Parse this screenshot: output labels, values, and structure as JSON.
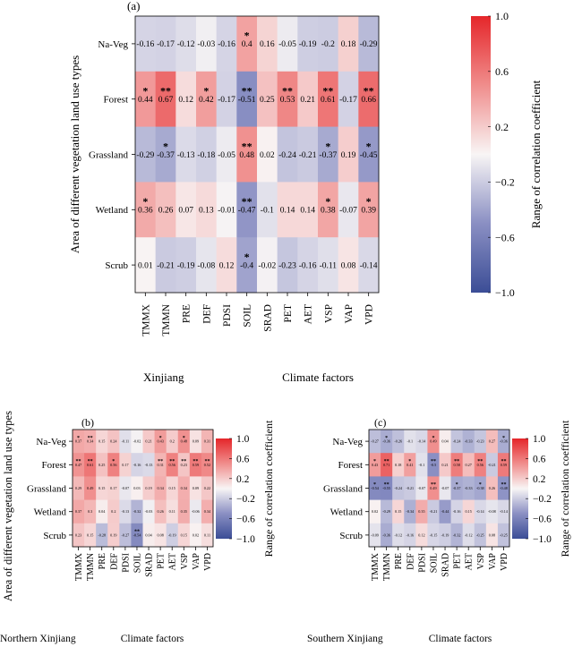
{
  "chart_data": [
    {
      "type": "heatmap",
      "panel_label": "(a)",
      "region": "Xinjiang",
      "xlabel": "Climate factors",
      "ylabel": "Area of different vegetation land use types",
      "colorbar_label": "Range of correlation coefficient",
      "colorbar_ticks": [
        "1.0",
        "0.6",
        "0.2",
        "−0.2",
        "−0.6",
        "−1.0"
      ],
      "vlim": [
        -1,
        1
      ],
      "x_categories": [
        "TMMX",
        "TMMN",
        "PRE",
        "DEF",
        "PDSI",
        "SOIL",
        "SRAD",
        "PET",
        "AET",
        "VSP",
        "VAP",
        "VPD"
      ],
      "y_categories": [
        "Na-Veg",
        "Forest",
        "Grassland",
        "Wetland",
        "Scrub"
      ],
      "values": [
        [
          -0.16,
          -0.17,
          -0.12,
          -0.03,
          -0.16,
          0.4,
          0.16,
          -0.05,
          -0.19,
          -0.2,
          0.18,
          -0.29
        ],
        [
          0.44,
          0.67,
          0.12,
          0.42,
          -0.17,
          -0.51,
          0.25,
          0.53,
          0.21,
          0.61,
          -0.17,
          0.66
        ],
        [
          -0.29,
          -0.37,
          -0.13,
          -0.18,
          -0.05,
          0.48,
          0.02,
          -0.24,
          -0.21,
          -0.37,
          0.19,
          -0.45
        ],
        [
          0.36,
          0.26,
          0.07,
          0.13,
          -0.01,
          -0.47,
          -0.1,
          0.14,
          0.14,
          0.38,
          -0.07,
          0.39
        ],
        [
          0.01,
          -0.21,
          -0.19,
          -0.08,
          0.12,
          -0.4,
          -0.02,
          -0.23,
          -0.16,
          -0.11,
          0.08,
          -0.14
        ]
      ],
      "significance": [
        [
          "",
          "",
          "",
          "",
          "",
          "*",
          "",
          "",
          "",
          "",
          "",
          ""
        ],
        [
          "*",
          "**",
          "",
          "*",
          "",
          "**",
          "",
          "**",
          "",
          "**",
          "",
          "**"
        ],
        [
          "",
          "*",
          "",
          "",
          "",
          "**",
          "",
          "",
          "",
          "*",
          "",
          "*"
        ],
        [
          "*",
          "",
          "",
          "",
          "",
          "**",
          "",
          "",
          "",
          "*",
          "",
          "*"
        ],
        [
          "",
          "",
          "",
          "",
          "",
          "*",
          "",
          "",
          "",
          "",
          "",
          ""
        ]
      ]
    },
    {
      "type": "heatmap",
      "panel_label": "(b)",
      "region": "Northern Xinjiang",
      "xlabel": "Climate factors",
      "ylabel": "Area of different vegetation land use types",
      "colorbar_label": "Range of correlation coefficient",
      "colorbar_ticks": [
        "1.0",
        "0.6",
        "0.2",
        "−0.2",
        "−0.6",
        "−1.0"
      ],
      "vlim": [
        -1,
        1
      ],
      "x_categories": [
        "TMMX",
        "TMMN",
        "PRE",
        "DEF",
        "PDSI",
        "SOIL",
        "SRAD",
        "PET",
        "AET",
        "VSP",
        "VAP",
        "VPD"
      ],
      "y_categories": [
        "Na-Veg",
        "Forest",
        "Grassland",
        "Wetland",
        "Scrub"
      ],
      "values": [
        [
          0.37,
          0.34,
          0.15,
          0.24,
          -0.11,
          -0.02,
          0.21,
          0.43,
          0.2,
          0.48,
          0.09,
          0.31
        ],
        [
          0.47,
          0.61,
          0.25,
          0.56,
          0.17,
          -0.16,
          -0.13,
          0.31,
          0.56,
          0.23,
          0.59,
          0.52
        ],
        [
          0.29,
          0.49,
          0.15,
          0.17,
          -0.07,
          0.03,
          0.19,
          0.34,
          0.15,
          0.34,
          0.09,
          0.22
        ],
        [
          0.37,
          0.3,
          0.04,
          0.2,
          -0.13,
          -0.32,
          -0.03,
          0.26,
          0.11,
          0.35,
          -0.06,
          0.34
        ],
        [
          0.23,
          0.15,
          -0.28,
          0.19,
          -0.27,
          -0.54,
          0.04,
          0.08,
          -0.19,
          0.15,
          0.02,
          0.11
        ]
      ],
      "significance": [
        [
          "*",
          "**",
          "",
          "",
          "",
          "",
          "",
          "*",
          "",
          "*",
          "",
          ""
        ],
        [
          "**",
          "**",
          "",
          "*",
          "",
          "",
          "",
          "**",
          "**",
          "**",
          "**",
          "**"
        ],
        [
          "",
          "",
          "",
          "",
          "",
          "",
          "",
          "",
          "",
          "",
          "",
          ""
        ],
        [
          "",
          "",
          "",
          "",
          "",
          "",
          "",
          "",
          "",
          "",
          "",
          ""
        ],
        [
          "",
          "",
          "",
          "",
          "",
          "**",
          "",
          "",
          "",
          "",
          "",
          ""
        ]
      ]
    },
    {
      "type": "heatmap",
      "panel_label": "(c)",
      "region": "Southern Xinjiang",
      "xlabel": "Climate factors",
      "ylabel": "",
      "colorbar_label": "Range of correlation coefficient",
      "colorbar_ticks": [
        "1.0",
        "0.6",
        "0.2",
        "−0.2",
        "−0.6",
        "−1.0"
      ],
      "vlim": [
        -1,
        1
      ],
      "x_categories": [
        "TMMX",
        "TMMN",
        "PRE",
        "DEF",
        "PDSI",
        "SOIL",
        "SRAD",
        "PET",
        "AET",
        "VSP",
        "VAP",
        "VPD"
      ],
      "y_categories": [
        "Na-Veg",
        "Forest",
        "Grassland",
        "Wetland",
        "Scrub"
      ],
      "values": [
        [
          -0.27,
          -0.36,
          -0.26,
          -0.1,
          -0.14,
          0.49,
          0.04,
          -0.24,
          -0.33,
          -0.23,
          0.27,
          -0.36
        ],
        [
          0.43,
          0.71,
          0.18,
          0.41,
          -0.1,
          -0.5,
          0.21,
          0.58,
          0.27,
          0.56,
          -0.21,
          0.59
        ],
        [
          -0.54,
          -0.55,
          -0.24,
          -0.21,
          -0.07,
          0.49,
          -0.07,
          -0.37,
          -0.33,
          -0.38,
          0.26,
          -0.48
        ],
        [
          0.02,
          -0.29,
          0.15,
          -0.34,
          0.35,
          -0.21,
          -0.44,
          -0.16,
          0.15,
          -0.14,
          -0.08,
          -0.14
        ],
        [
          -0.09,
          -0.36,
          -0.12,
          -0.16,
          0.12,
          -0.15,
          -0.19,
          -0.32,
          -0.12,
          -0.25,
          0.08,
          -0.25
        ]
      ],
      "significance": [
        [
          "",
          "*",
          "",
          "",
          "",
          "*",
          "",
          "",
          "",
          "",
          "",
          "*"
        ],
        [
          "*",
          "**",
          "",
          "*",
          "",
          "**",
          "",
          "**",
          "",
          "**",
          "",
          "**"
        ],
        [
          "*",
          "**",
          "",
          "",
          "",
          "**",
          "",
          "*",
          "",
          "*",
          "",
          "**"
        ],
        [
          "",
          "",
          "",
          "",
          "",
          "",
          "",
          "",
          "",
          "",
          "",
          ""
        ],
        [
          "",
          "",
          "",
          "",
          "",
          "",
          "",
          "",
          "",
          "",
          "",
          ""
        ]
      ]
    }
  ]
}
